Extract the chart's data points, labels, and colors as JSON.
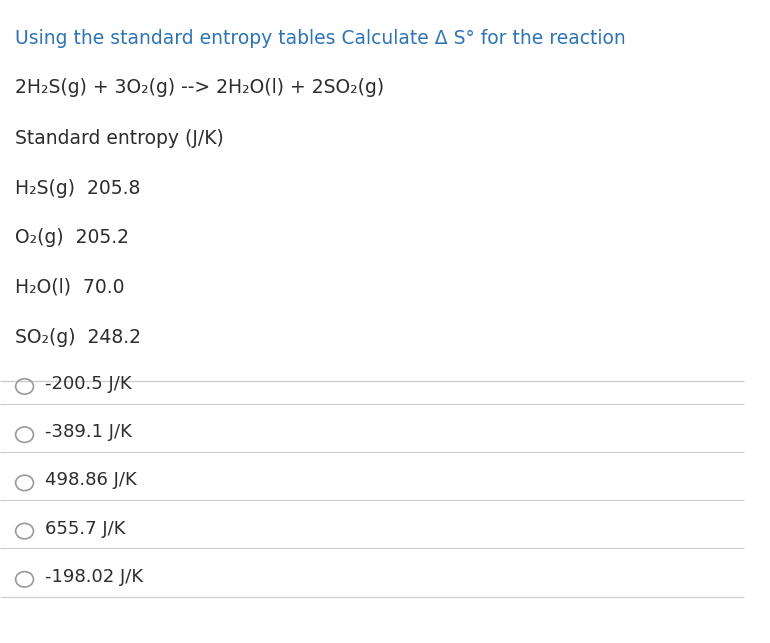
{
  "bg_color": "#ffffff",
  "text_color": "#2d2d2d",
  "blue_color": "#2e74b5",
  "line_color": "#cccccc",
  "title": "Using the standard entropy tables Calculate Δ S° for the reaction",
  "reaction": "2H₂S(g) + 3O₂(g) --> 2H₂O(l) + 2SO₂(g)",
  "table_header": "Standard entropy (J/K)",
  "entries": [
    {
      "label": "H₂S(g)  205.8"
    },
    {
      "label": "O₂(g)  205.2"
    },
    {
      "label": "H₂O(l)  70.0"
    },
    {
      "label": "SO₂(g)  248.2"
    }
  ],
  "choices": [
    "-200.5 J/K",
    "-389.1 J/K",
    "498.86 J/K",
    "655.7 J/K",
    "-198.02 J/K"
  ],
  "title_fontsize": 13.5,
  "body_fontsize": 13.5,
  "choice_fontsize": 13.0
}
